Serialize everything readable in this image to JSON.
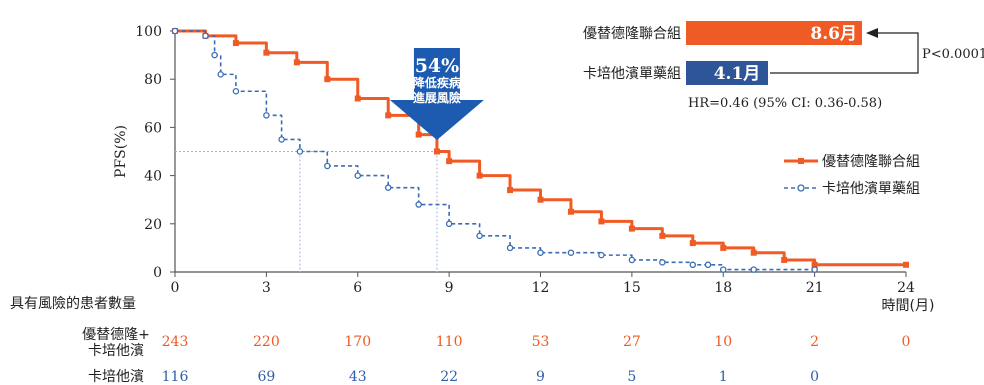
{
  "chart_data": {
    "type": "line",
    "title": "",
    "ylabel": "PFS(%)",
    "xlabel": "時間(月)",
    "xlim": [
      0,
      24
    ],
    "ylim": [
      0,
      100
    ],
    "x_ticks": [
      0,
      3,
      6,
      9,
      12,
      15,
      18,
      21,
      24
    ],
    "y_ticks": [
      0,
      20,
      40,
      60,
      80,
      100
    ],
    "series": [
      {
        "name": "優替德隆聯合組",
        "color": "#f05a24",
        "marker": "square",
        "x": [
          0,
          1,
          2,
          3,
          4,
          5,
          6,
          7,
          8,
          8.6,
          9,
          10,
          11,
          12,
          13,
          14,
          15,
          16,
          17,
          18,
          19,
          20,
          21,
          24
        ],
        "y": [
          100,
          98,
          95,
          91,
          87,
          80,
          72,
          65,
          57,
          50,
          46,
          40,
          34,
          30,
          25,
          21,
          18,
          15,
          12,
          10,
          8,
          5,
          3,
          3
        ]
      },
      {
        "name": "卡培他濱單藥組",
        "color": "#3a6db5",
        "marker": "circle",
        "x": [
          0,
          1,
          1.3,
          1.5,
          2,
          3,
          3.5,
          4.1,
          5,
          6,
          7,
          8,
          9,
          10,
          11,
          12,
          13,
          14,
          15,
          16,
          17,
          17.5,
          18,
          19,
          21
        ],
        "y": [
          100,
          98,
          90,
          82,
          75,
          65,
          55,
          50,
          44,
          40,
          35,
          28,
          20,
          15,
          10,
          8,
          8,
          7,
          5,
          4,
          3,
          3,
          1,
          1,
          1
        ]
      }
    ],
    "legend_position": "right",
    "annotations": {
      "arrow_percent": "54%",
      "arrow_text_1": "降低疾病",
      "arrow_text_2": "進展風險",
      "median_combo_label": "優替德隆聯合組",
      "median_combo_value": "8.6月",
      "median_mono_label": "卡培他濱單藥組",
      "median_mono_value": "4.1月",
      "p_value": "P<0.0001",
      "hr_text": "HR=0.46 (95% CI: 0.36-0.58)",
      "median_combo_x": 8.6,
      "median_mono_x": 4.1
    },
    "risk_table": {
      "title": "具有風險的患者數量",
      "row1_label_a": "優替德隆+",
      "row1_label_b": "卡培他濱",
      "row2_label": "卡培他濱",
      "times": [
        0,
        3,
        6,
        9,
        12,
        15,
        18,
        21,
        24
      ],
      "combo": [
        "243",
        "220",
        "170",
        "110",
        "53",
        "27",
        "10",
        "2",
        "0"
      ],
      "mono": [
        "116",
        "69",
        "43",
        "22",
        "9",
        "5",
        "1",
        "0"
      ]
    }
  },
  "colors": {
    "orange": "#f05a24",
    "blue": "#2f5fa8",
    "lightblue": "#5b8fd1",
    "axis": "#555555"
  }
}
